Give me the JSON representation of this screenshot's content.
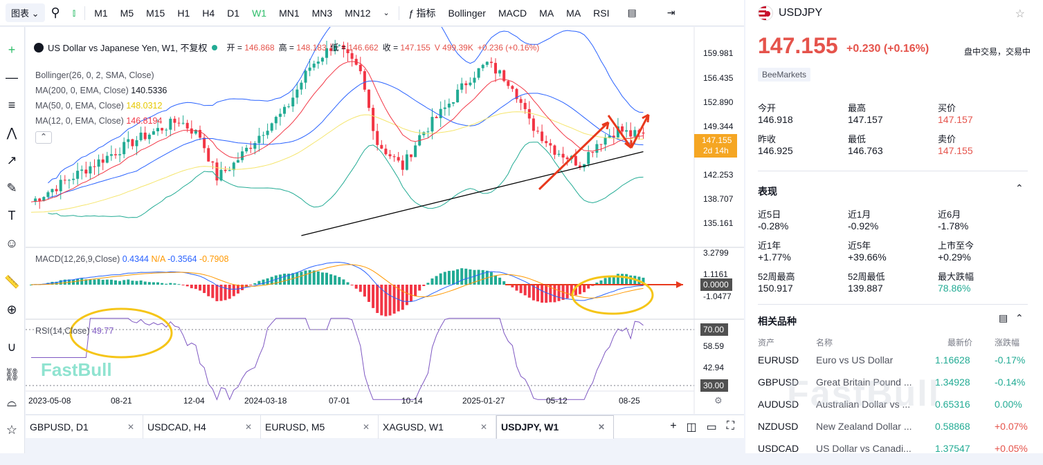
{
  "toolbar": {
    "chart_menu": "图表",
    "timeframes": [
      "M1",
      "M5",
      "M15",
      "H1",
      "H4",
      "D1",
      "W1",
      "MN1",
      "MN3",
      "MN12"
    ],
    "active_timeframe": "W1",
    "indicators_label": "指标",
    "indicators": [
      "Bollinger",
      "MACD",
      "MA",
      "MA",
      "RSI"
    ]
  },
  "legend": {
    "title": "US Dollar vs Japanese Yen, W1, 不复权",
    "open_label": "开 =",
    "open": "146.868",
    "high_label": "高 =",
    "high": "148.183",
    "low_label": "低 =",
    "low": "146.662",
    "close_label": "收 =",
    "close": "147.155",
    "volume": "V 499.39K",
    "change": "+0.236 (+0.16%)",
    "bollinger": "Bollinger(26, 0, 2, SMA, Close)",
    "ma200": "MA(200, 0, EMA, Close)",
    "ma200_value": "140.5336",
    "ma50": "MA(50, 0, EMA, Close)",
    "ma50_value": "148.0312",
    "ma12": "MA(12, 0, EMA, Close)",
    "ma12_value": "146.8194",
    "macd": "MACD(12,26,9,Close)",
    "macd_v1": "0.4344",
    "macd_v2": "N/A",
    "macd_v3": "-0.3564",
    "macd_v4": "-0.7908",
    "rsi": "RSI(14,Close)",
    "rsi_value": "49.77"
  },
  "price_axis": {
    "ticks": [
      "159.981",
      "156.435",
      "152.890",
      "149.344",
      "142.253",
      "138.707",
      "135.161"
    ],
    "current": "147.155",
    "countdown": "2d 14h"
  },
  "macd_axis": {
    "ticks": [
      "3.2799",
      "1.1161",
      "-1.0477"
    ],
    "current": "0.0000"
  },
  "rsi_axis": {
    "ticks": [
      "70.00",
      "58.59",
      "42.94",
      "30.00"
    ]
  },
  "time_axis": [
    "2023-05-08",
    "08-21",
    "12-04",
    "2024-03-18",
    "07-01",
    "10-14",
    "2025-01-27",
    "05-12",
    "08-25"
  ],
  "watermark": "FastBull",
  "colors": {
    "up": "#22ab94",
    "down": "#f23645",
    "boll": "#2962ff",
    "ma200": "#000000",
    "ma50": "#f5e56b",
    "ma12": "#f23645",
    "macd": "#2962ff",
    "signal": "#ff9800",
    "rsi": "#7e57c2",
    "annot_arrow": "#e8391d",
    "annot_circle": "#f5c518",
    "pricebox": "#f5a623"
  },
  "tabs": [
    {
      "label": "GBPUSD, D1"
    },
    {
      "label": "USDCAD, H4"
    },
    {
      "label": "EURUSD, M5"
    },
    {
      "label": "XAGUSD, W1"
    },
    {
      "label": "USDJPY, W1"
    }
  ],
  "panel": {
    "symbol": "USDJPY",
    "price": "147.155",
    "change": "+0.230",
    "change_pct": "(+0.16%)",
    "session": "盘中交易，交易中",
    "broker": "BeeMarkets",
    "stats": [
      {
        "label": "今开",
        "value": "146.918"
      },
      {
        "label": "最高",
        "value": "147.157"
      },
      {
        "label": "买价",
        "value": "147.157"
      },
      {
        "label": "昨收",
        "value": "146.925"
      },
      {
        "label": "最低",
        "value": "146.763"
      },
      {
        "label": "卖价",
        "value": "147.155"
      }
    ],
    "perf_title": "表现",
    "perf": [
      {
        "label": "近5日",
        "value": "-0.28%"
      },
      {
        "label": "近1月",
        "value": "-0.92%"
      },
      {
        "label": "近6月",
        "value": "-1.78%"
      },
      {
        "label": "近1年",
        "value": "+1.77%"
      },
      {
        "label": "近5年",
        "value": "+39.66%"
      },
      {
        "label": "上市至今",
        "value": "+0.29%"
      },
      {
        "label": "52周最高",
        "value": "150.917"
      },
      {
        "label": "52周最低",
        "value": "139.887"
      },
      {
        "label": "最大跌幅",
        "value": "78.86%"
      }
    ],
    "related_title": "相关品种",
    "related_headers": [
      "资产",
      "名称",
      "最新价",
      "涨跌幅"
    ],
    "related": [
      {
        "sym": "EURUSD",
        "name": "Euro vs US Dollar",
        "price": "1.16628",
        "chg": "-0.17%"
      },
      {
        "sym": "GBPUSD",
        "name": "Great Britain Pound ...",
        "price": "1.34928",
        "chg": "-0.14%"
      },
      {
        "sym": "AUDUSD",
        "name": "Australian Dollar vs ...",
        "price": "0.65316",
        "chg": "0.00%"
      },
      {
        "sym": "NZDUSD",
        "name": "New Zealand Dollar ...",
        "price": "0.58868",
        "chg": "+0.07%"
      },
      {
        "sym": "USDCAD",
        "name": "US Dollar vs Canadi...",
        "price": "1.37547",
        "chg": "+0.05%"
      }
    ]
  }
}
